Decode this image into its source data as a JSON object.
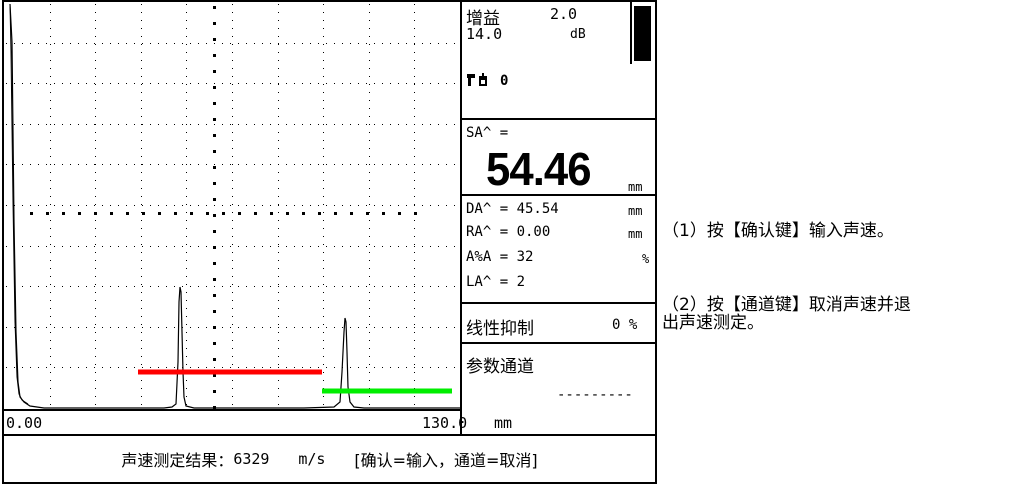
{
  "panel": {
    "gain_label": "增益",
    "gain_value": "2.0",
    "gain_db": "14.0",
    "gain_unit": "dB",
    "lock_text": "0",
    "sa_label": "SA^ =",
    "sa_value": "54.46",
    "sa_unit": "mm",
    "measurements": [
      {
        "text": "DA^ = 45.54",
        "unit": "mm"
      },
      {
        "text": "RA^ = 0.00",
        "unit": "mm"
      },
      {
        "text": "A%A = 32",
        "unit": "%"
      },
      {
        "text": "LA^ = 2",
        "unit": ""
      }
    ],
    "suppress_label": "线性抑制",
    "suppress_value": "0 %",
    "channel_label": "参数通道",
    "channel_value": "---------"
  },
  "axis": {
    "start": "0.00",
    "end": "130.0",
    "unit": "mm"
  },
  "status": {
    "label": "声速测定结果：",
    "value": "6329",
    "unit": "m/s",
    "hint": "[确认=输入，通道=取消]"
  },
  "notes": {
    "line1": "（1）按【确认键】输入声速。",
    "line2a": "（2）按【通道键】取消声速并退",
    "line2b": "出声速测定。"
  },
  "colors": {
    "gate_a": "#ff0000",
    "gate_b": "#00ee00"
  }
}
